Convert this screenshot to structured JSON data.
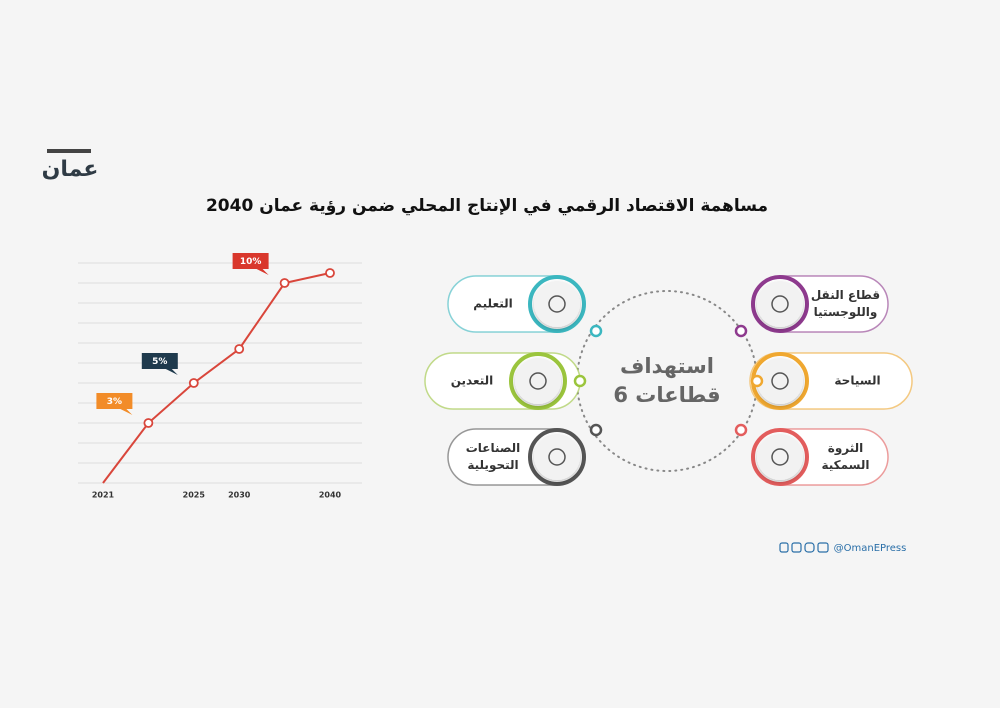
{
  "logo": "عمان",
  "title": "مساهمة الاقتصاد الرقمي في الإنتاج المحلي ضمن رؤية عمان 2040",
  "chart_data": {
    "type": "line",
    "categories": [
      "2021",
      null,
      "2025",
      "2030",
      null,
      "2040"
    ],
    "series": [
      {
        "color": "#d9463b",
        "values": [
          0,
          3,
          5,
          6.7,
          10,
          10.5
        ],
        "value_labels": [
          null,
          "3%",
          "5%",
          null,
          "10%",
          null
        ],
        "label_colors": [
          null,
          "#f28c28",
          "#1f3a4d",
          null,
          "#d9372c",
          null
        ]
      }
    ],
    "ylim": [
      0,
      11
    ],
    "yticks": [
      0,
      1,
      2,
      3,
      4,
      5,
      6,
      7,
      8,
      9,
      10,
      11
    ],
    "grid": true
  },
  "hub": [
    "استهداف",
    "6 قطاعات"
  ],
  "sectors": [
    {
      "label": [
        "التعليم"
      ],
      "color": "#3bb7c0"
    },
    {
      "label": [
        "التعدين"
      ],
      "color": "#9bc53d"
    },
    {
      "label": [
        "الصناعات",
        "التحويلية"
      ],
      "color": "#555555"
    },
    {
      "label": [
        "قطاع النقل",
        "واللوجستيا"
      ],
      "color": "#8e3a8e"
    },
    {
      "label": [
        "السياحة"
      ],
      "color": "#f0a830"
    },
    {
      "label": [
        "الثروة",
        "السمكية"
      ],
      "color": "#e35d5d"
    }
  ],
  "footer": "@OmanEPress"
}
